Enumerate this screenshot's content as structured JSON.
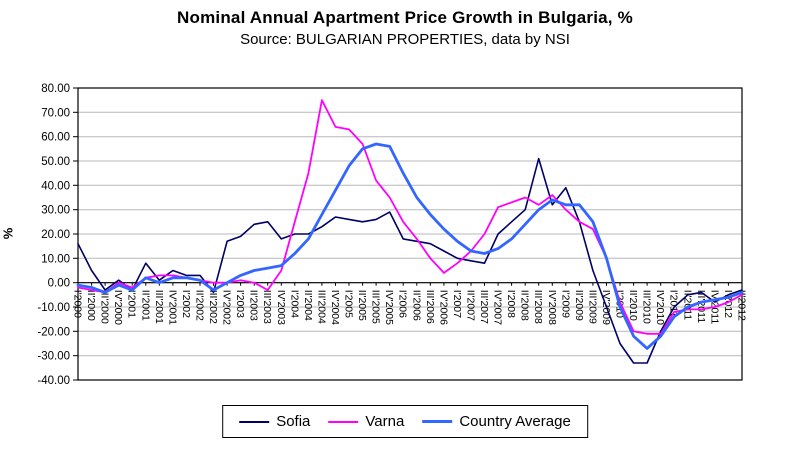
{
  "chart_data": {
    "type": "line",
    "title": "Nominal Annual Apartment Price Growth in Bulgaria, %",
    "subtitle": "Source: BULGARIAN PROPERTIES, data by NSI",
    "ylabel": "%",
    "ylim": [
      -40,
      80
    ],
    "yticks": [
      80,
      70,
      60,
      50,
      40,
      30,
      20,
      10,
      0,
      -10,
      -20,
      -30,
      -40
    ],
    "grid": true,
    "grid_color": "#b8b8b8",
    "axis_color": "#000000",
    "legend_position": "bottom",
    "categories": [
      "I'2000",
      "II'2000",
      "III'2000",
      "IV'2000",
      "I'2001",
      "II'2001",
      "III'2001",
      "IV'2001",
      "I'2002",
      "II'2002",
      "III'2002",
      "IV'2002",
      "I'2003",
      "II'2003",
      "III'2003",
      "IV'2003",
      "I'2004",
      "II'2004",
      "III'2004",
      "IV'2004",
      "I'2005",
      "II'2005",
      "III'2005",
      "IV'2005",
      "I'2006",
      "II'2006",
      "III'2006",
      "IV'2006",
      "I'2007",
      "II'2007",
      "III'2007",
      "IV'2007",
      "I'2008",
      "II'2008",
      "III'2008",
      "IV'2008",
      "I'2009",
      "II'2009",
      "III'2009",
      "IV'2009",
      "I'2010",
      "II'2010",
      "III'2010",
      "IV'2010",
      "I'2011",
      "II'2011",
      "III'2011",
      "IV'2011",
      "I'2012",
      "II'2012"
    ],
    "series": [
      {
        "name": "Sofia",
        "color": "#000066",
        "width": 1.6,
        "values": [
          16,
          5,
          -3,
          1,
          -3,
          8,
          1,
          5,
          3,
          3,
          -4,
          17,
          19,
          24,
          25,
          18,
          20,
          20,
          23,
          27,
          26,
          25,
          26,
          29,
          18,
          17,
          16,
          13,
          10,
          9,
          8,
          20,
          25,
          30,
          51,
          32,
          39,
          25,
          5,
          -10,
          -25,
          -33,
          -33,
          -20,
          -10,
          -5,
          -4,
          -8,
          -5,
          -3
        ]
      },
      {
        "name": "Varna",
        "color": "#FF00FF",
        "width": 1.8,
        "values": [
          -2,
          -3,
          -4,
          0,
          -2,
          2,
          3,
          3,
          2,
          1,
          0,
          0,
          1,
          0,
          -3,
          5,
          25,
          45,
          75,
          64,
          63,
          57,
          42,
          35,
          25,
          18,
          10,
          4,
          8,
          13,
          20,
          31,
          33,
          35,
          32,
          36,
          30,
          25,
          22,
          10,
          -8,
          -20,
          -21,
          -21,
          -12,
          -11,
          -11,
          -10,
          -8,
          -5
        ]
      },
      {
        "name": "Country Average",
        "color": "#3366FF",
        "width": 2.8,
        "values": [
          -1,
          -2,
          -4,
          -1,
          -3,
          2,
          0,
          2,
          2,
          1,
          -3,
          0,
          3,
          5,
          6,
          7,
          12,
          18,
          28,
          38,
          48,
          55,
          57,
          56,
          45,
          35,
          28,
          22,
          17,
          13,
          12,
          14,
          18,
          24,
          30,
          34,
          32,
          32,
          25,
          10,
          -10,
          -22,
          -27,
          -22,
          -14,
          -10,
          -8,
          -7,
          -6,
          -4
        ]
      }
    ]
  }
}
